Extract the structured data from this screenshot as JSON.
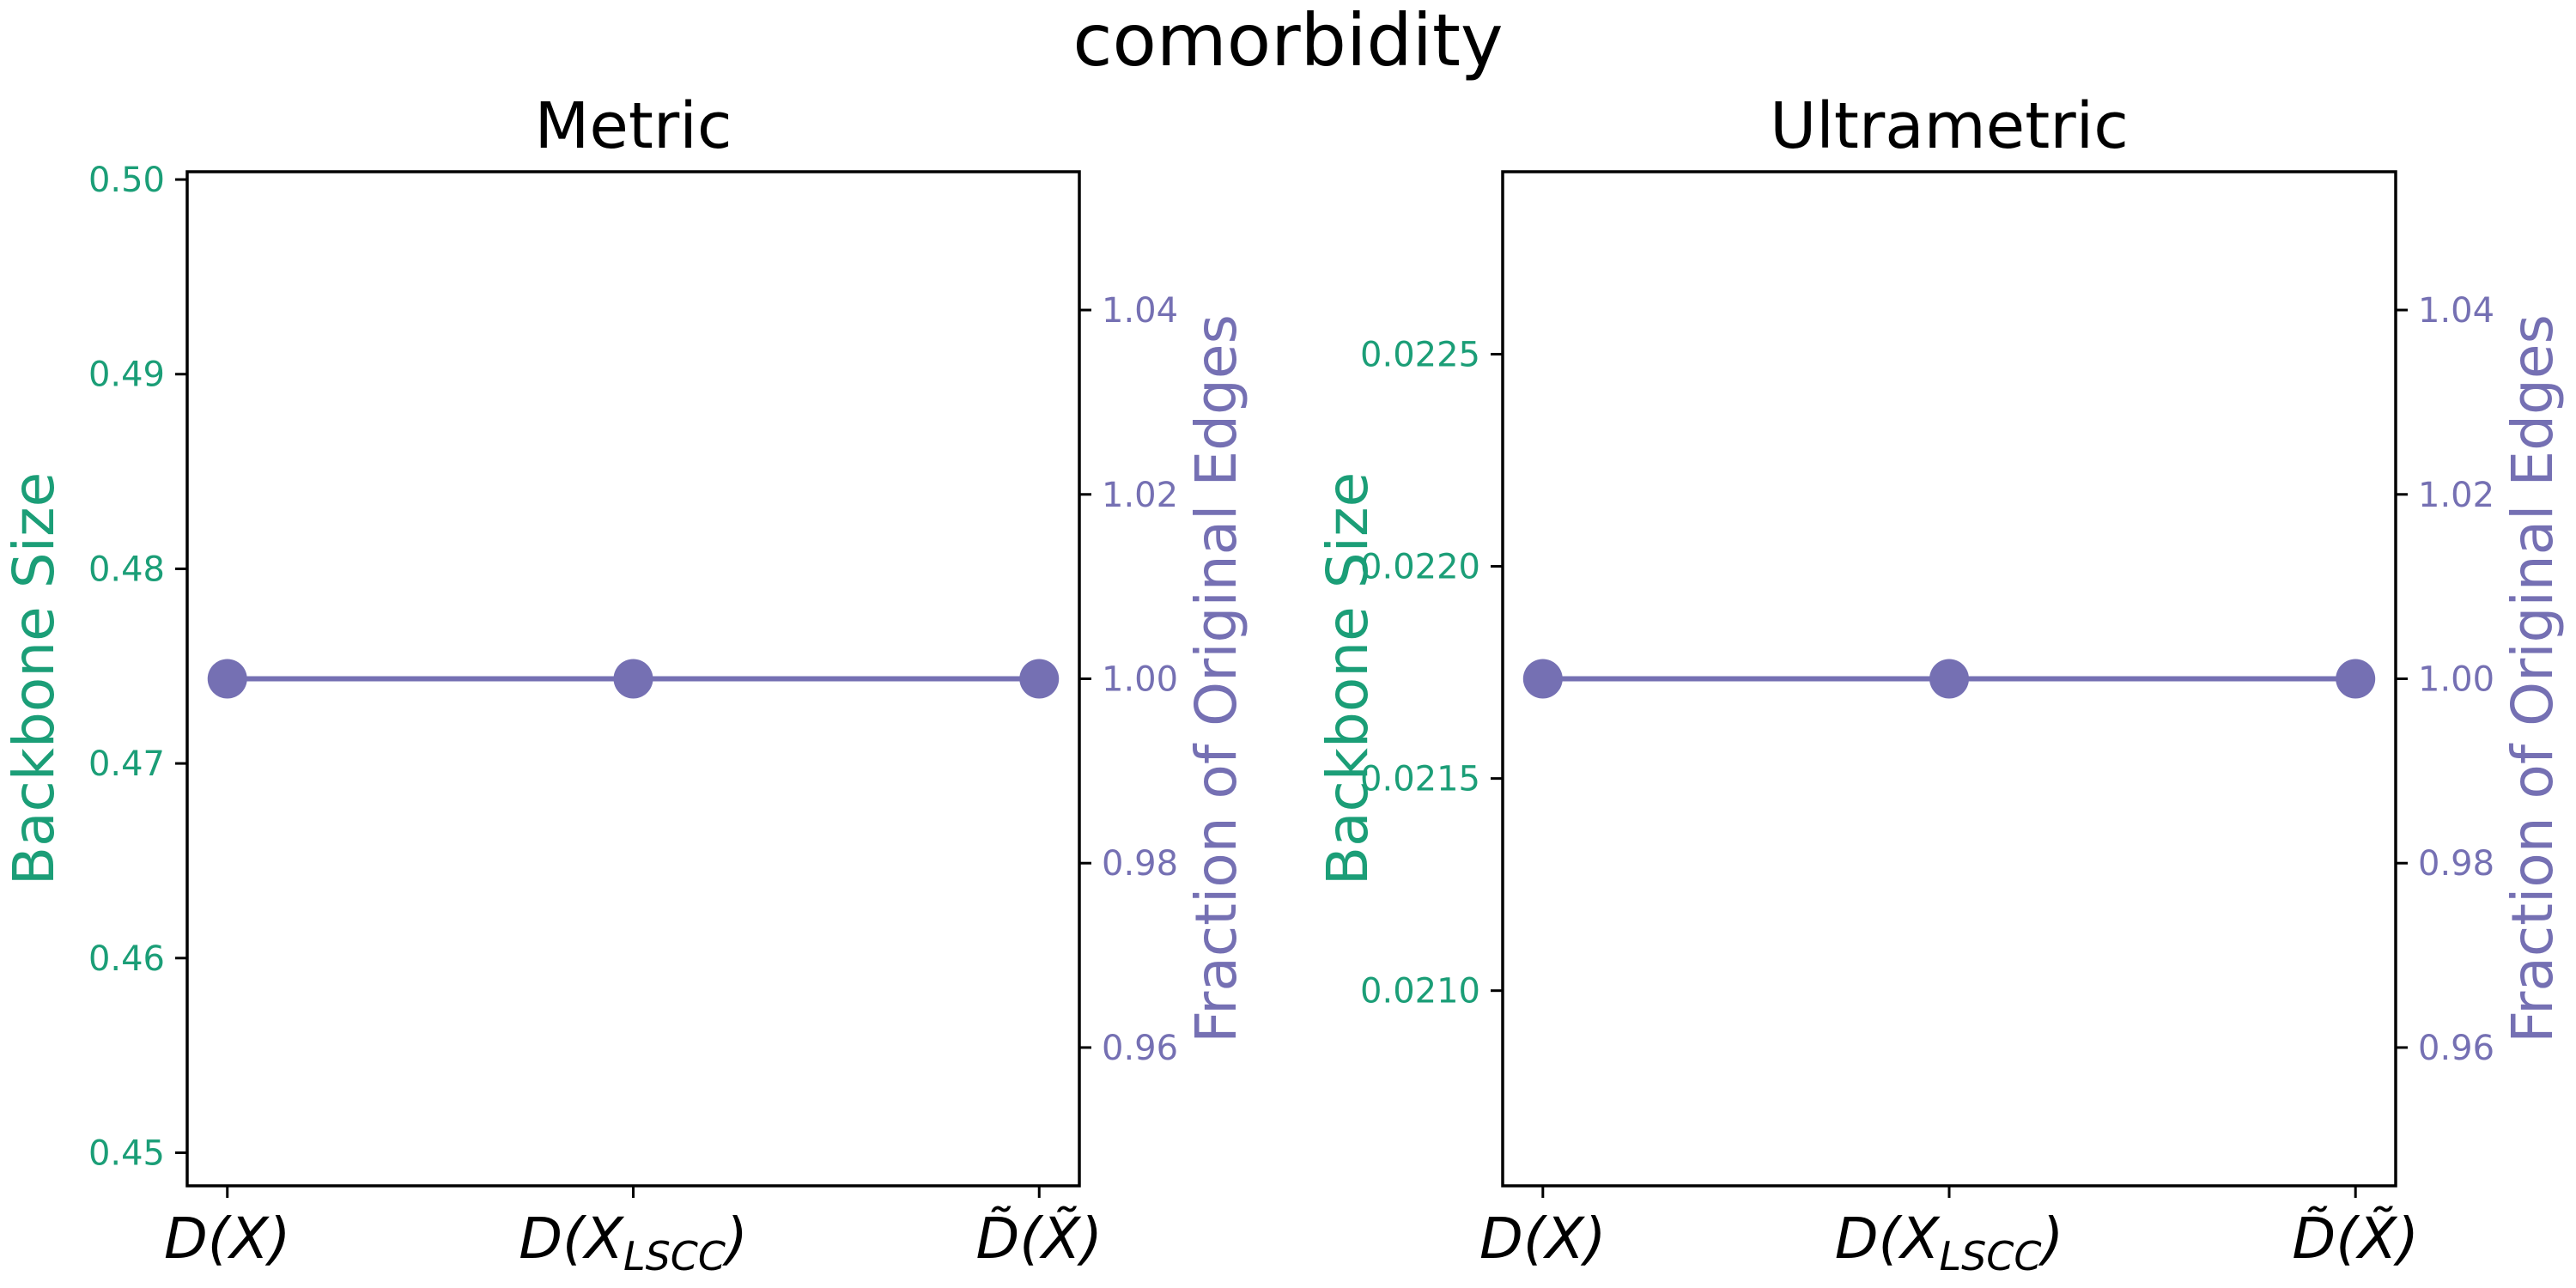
{
  "chart_data": {
    "title": "comorbidity",
    "colors": {
      "left_axis": "#1b9e77",
      "right_axis": "#7570b3",
      "frame": "#000000"
    },
    "panels": [
      {
        "type": "line",
        "title": "Metric",
        "categories": [
          "D(X)",
          "D(X_LSCC)",
          "D̃(X̃)"
        ],
        "ylabel_left": "Backbone Size",
        "ylabel_right": "Fraction of Original Edges",
        "ylim_left": [
          0.4483,
          0.5004
        ],
        "yticks_left": [
          "0.45",
          "0.46",
          "0.47",
          "0.48",
          "0.49",
          "0.50"
        ],
        "ylim_right": [
          0.945,
          1.055
        ],
        "yticks_right": [
          "0.96",
          "0.98",
          "1.00",
          "1.02",
          "1.04"
        ],
        "series": [
          {
            "axis": "right",
            "values": [
              1.0,
              1.0,
              1.0
            ]
          }
        ]
      },
      {
        "type": "line",
        "title": "Ultrametric",
        "categories": [
          "D(X)",
          "D(X_LSCC)",
          "D̃(X̃)"
        ],
        "ylabel_left": "Backbone Size",
        "ylabel_right": "Fraction of Original Edges",
        "ylim_left": [
          0.02054,
          0.02293
        ],
        "yticks_left": [
          "0.0210",
          "0.0215",
          "0.0220",
          "0.0225"
        ],
        "ylim_right": [
          0.945,
          1.055
        ],
        "yticks_right": [
          "0.96",
          "0.98",
          "1.00",
          "1.02",
          "1.04"
        ],
        "series": [
          {
            "axis": "right",
            "values": [
              1.0,
              1.0,
              1.0
            ]
          }
        ]
      }
    ]
  }
}
